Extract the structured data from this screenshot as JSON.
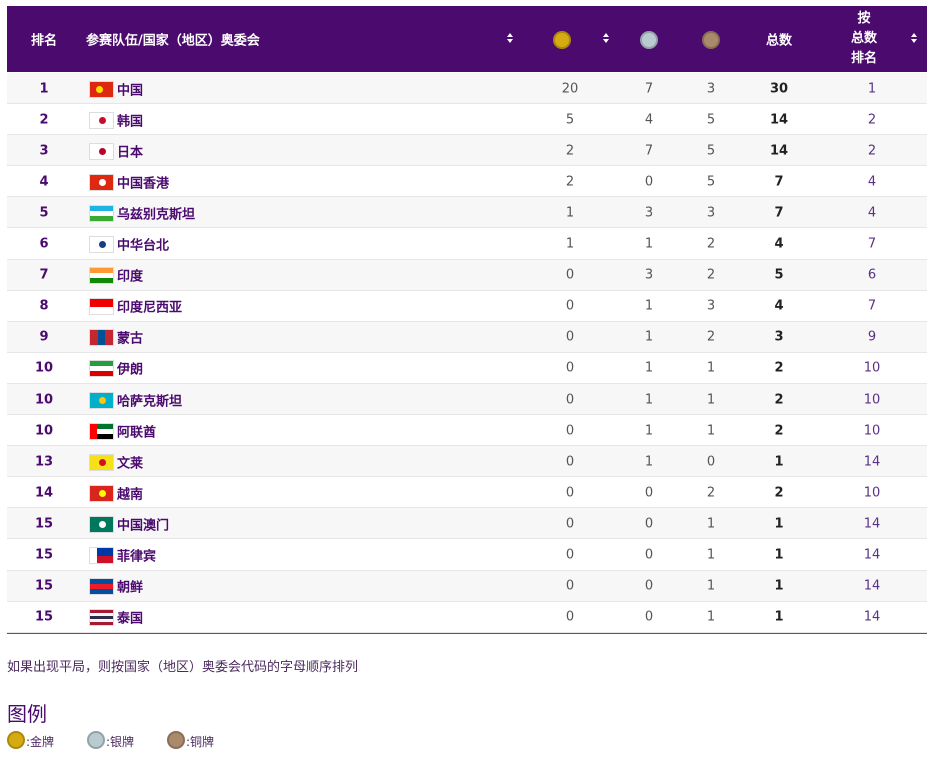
{
  "header": {
    "rank": "排名",
    "team": "参赛队伍/国家（地区）奥委会",
    "total": "总数",
    "total_rank": [
      "按",
      "总数",
      "排名"
    ]
  },
  "table": {
    "rows": [
      [
        1,
        "中国",
        20,
        7,
        3,
        30,
        1
      ],
      [
        2,
        "韩国",
        5,
        4,
        5,
        14,
        2
      ],
      [
        3,
        "日本",
        2,
        7,
        5,
        14,
        2
      ],
      [
        4,
        "中国香港",
        2,
        0,
        5,
        7,
        4
      ],
      [
        5,
        "乌兹别克斯坦",
        1,
        3,
        3,
        7,
        4
      ],
      [
        6,
        "中华台北",
        1,
        1,
        2,
        4,
        7
      ],
      [
        7,
        "印度",
        0,
        3,
        2,
        5,
        6
      ],
      [
        8,
        "印度尼西亚",
        0,
        1,
        3,
        4,
        7
      ],
      [
        9,
        "蒙古",
        0,
        1,
        2,
        3,
        9
      ],
      [
        10,
        "伊朗",
        0,
        1,
        1,
        2,
        10
      ],
      [
        10,
        "哈萨克斯坦",
        0,
        1,
        1,
        2,
        10
      ],
      [
        10,
        "阿联酋",
        0,
        1,
        1,
        2,
        10
      ],
      [
        13,
        "文莱",
        0,
        1,
        0,
        1,
        14
      ],
      [
        14,
        "越南",
        0,
        0,
        2,
        2,
        10
      ],
      [
        15,
        "中国澳门",
        0,
        0,
        1,
        1,
        14
      ],
      [
        15,
        "菲律宾",
        0,
        0,
        1,
        1,
        14
      ],
      [
        15,
        "朝鲜",
        0,
        0,
        1,
        1,
        14
      ],
      [
        15,
        "泰国",
        0,
        0,
        1,
        1,
        14
      ]
    ]
  },
  "note": "如果出现平局，则按国家（地区）奥委会代码的字母顺序排列",
  "legend": {
    "title": "图例",
    "items": [
      ":金牌",
      ":银牌",
      ":铜牌"
    ]
  }
}
